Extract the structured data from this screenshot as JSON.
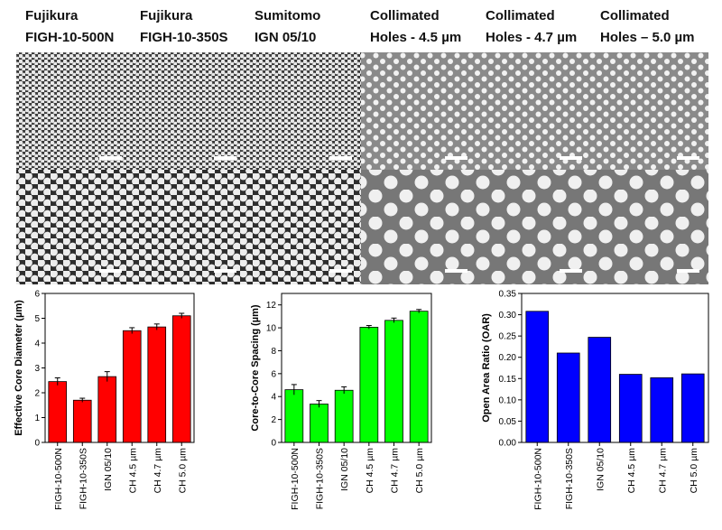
{
  "columns": [
    {
      "title": [
        "Fujikura",
        "FIGH-10-500N"
      ]
    },
    {
      "title": [
        "Fujikura",
        "FIGH-10-350S"
      ]
    },
    {
      "title": [
        "Sumitomo",
        "IGN 05/10"
      ]
    },
    {
      "title": [
        "Collimated",
        "Holes - 4.5 µm"
      ]
    },
    {
      "title": [
        "Collimated",
        "Holes - 4.7 µm"
      ]
    },
    {
      "title": [
        "Collimated",
        "Holes – 5.0 µm"
      ]
    }
  ],
  "chart_data": [
    {
      "type": "bar",
      "y_label": "Effective Core Diameter (µm)",
      "categories": [
        "FIGH-10-500N",
        "FIGH-10-350S",
        "IGN 05/10",
        "CH 4.5 µm",
        "CH 4.7 µm",
        "CH 5.0 µm"
      ],
      "values": [
        2.45,
        1.7,
        2.65,
        4.5,
        4.65,
        5.1
      ],
      "errors": [
        0.15,
        0.08,
        0.2,
        0.12,
        0.12,
        0.1
      ],
      "color": "#ff0000",
      "ylim": [
        0,
        6
      ],
      "yticks": [
        0,
        1,
        2,
        3,
        4,
        5,
        6
      ]
    },
    {
      "type": "bar",
      "y_label": "Core-to-Core Spacing (µm)",
      "categories": [
        "FIGH-10-500N",
        "FIGH-10-350S",
        "IGN 05/10",
        "CH 4.5 µm",
        "CH 4.7 µm",
        "CH 5.0 µm"
      ],
      "values": [
        4.6,
        3.35,
        4.55,
        10.05,
        10.65,
        11.45
      ],
      "errors": [
        0.45,
        0.3,
        0.3,
        0.15,
        0.2,
        0.15
      ],
      "color": "#00ff00",
      "ylim": [
        0,
        13
      ],
      "yticks": [
        0,
        2,
        4,
        6,
        8,
        10,
        12
      ]
    },
    {
      "type": "bar",
      "y_label": "Open Area Ratio (OAR)",
      "categories": [
        "FIGH-10-500N",
        "FIGH-10-350S",
        "IGN 05/10",
        "CH 4.5 µm",
        "CH 4.7 µm",
        "CH 5.0 µm"
      ],
      "values": [
        0.308,
        0.21,
        0.247,
        0.16,
        0.152,
        0.161
      ],
      "color": "#0000ff",
      "ylim": [
        0,
        0.35
      ],
      "yticks": [
        {
          "value": 0,
          "label": "0.00"
        },
        {
          "value": 0.05,
          "label": "0.05"
        },
        {
          "value": 0.1,
          "label": "0.10"
        },
        {
          "value": 0.15,
          "label": "0.15"
        },
        {
          "value": 0.2,
          "label": "0.20"
        },
        {
          "value": 0.25,
          "label": "0.25"
        },
        {
          "value": 0.3,
          "label": "0.30"
        },
        {
          "value": 0.35,
          "label": "0.35"
        }
      ]
    }
  ]
}
